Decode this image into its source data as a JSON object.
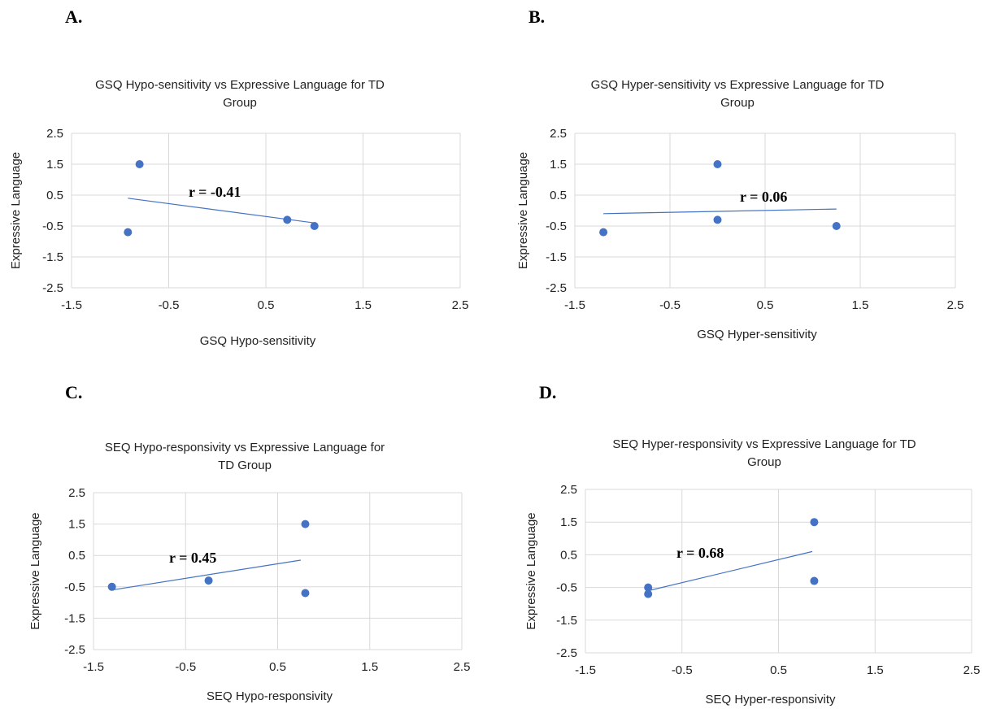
{
  "chart_data": [
    {
      "panel": "A.",
      "type": "scatter",
      "title": "GSQ Hypo-sensitivity vs Expressive Language for TD Group",
      "title_lines": [
        "GSQ Hypo-sensitivity vs Expressive Language for TD",
        "Group"
      ],
      "xlabel": "GSQ Hypo-sensitivity",
      "ylabel": "Expressive Language",
      "xlim": [
        -1.5,
        2.5
      ],
      "ylim": [
        -2.5,
        2.5
      ],
      "xticks": [
        "-1.5",
        "-0.5",
        "0.5",
        "1.5",
        "2.5"
      ],
      "yticks": [
        "2.5",
        "1.5",
        "0.5",
        "-0.5",
        "-1.5",
        "-2.5"
      ],
      "grid": true,
      "points": [
        {
          "x": -0.8,
          "y": 1.5
        },
        {
          "x": -0.92,
          "y": -0.7
        },
        {
          "x": 0.72,
          "y": -0.3
        },
        {
          "x": 1.0,
          "y": -0.5
        }
      ],
      "trendline": {
        "x": [
          -0.92,
          1.0
        ],
        "y": [
          0.4,
          -0.4
        ]
      },
      "annotation": "r = -0.41"
    },
    {
      "panel": "B.",
      "type": "scatter",
      "title": "GSQ Hyper-sensitivity vs Expressive Language for TD Group",
      "title_lines": [
        "GSQ Hyper-sensitivity vs Expressive Language for TD",
        "Group"
      ],
      "xlabel": "GSQ Hyper-sensitivity",
      "ylabel": "Expressive Language",
      "xlim": [
        -1.5,
        2.5
      ],
      "ylim": [
        -2.5,
        2.5
      ],
      "xticks": [
        "-1.5",
        "-0.5",
        "0.5",
        "1.5",
        "2.5"
      ],
      "yticks": [
        "2.5",
        "1.5",
        "0.5",
        "-0.5",
        "-1.5",
        "-2.5"
      ],
      "grid": true,
      "points": [
        {
          "x": -1.2,
          "y": -0.7
        },
        {
          "x": 0.0,
          "y": 1.5
        },
        {
          "x": 0.0,
          "y": -0.3
        },
        {
          "x": 1.25,
          "y": -0.5
        }
      ],
      "trendline": {
        "x": [
          -1.2,
          1.25
        ],
        "y": [
          -0.1,
          0.05
        ]
      },
      "annotation": "r = 0.06"
    },
    {
      "panel": "C.",
      "type": "scatter",
      "title": "SEQ Hypo-responsivity vs Expressive Language for TD Group",
      "title_lines": [
        "SEQ Hypo-responsivity vs Expressive Language for",
        "TD Group"
      ],
      "xlabel": "SEQ Hypo-responsivity",
      "ylabel": "Expressive Language",
      "xlim": [
        -1.5,
        2.5
      ],
      "ylim": [
        -2.5,
        2.5
      ],
      "xticks": [
        "-1.5",
        "-0.5",
        "0.5",
        "1.5",
        "2.5"
      ],
      "yticks": [
        "2.5",
        "1.5",
        "0.5",
        "-0.5",
        "-1.5",
        "-2.5"
      ],
      "grid": true,
      "points": [
        {
          "x": -1.3,
          "y": -0.5
        },
        {
          "x": -0.25,
          "y": -0.3
        },
        {
          "x": 0.8,
          "y": 1.5
        },
        {
          "x": 0.8,
          "y": -0.7
        }
      ],
      "trendline": {
        "x": [
          -1.3,
          0.75
        ],
        "y": [
          -0.6,
          0.35
        ]
      },
      "annotation": "r = 0.45"
    },
    {
      "panel": "D.",
      "type": "scatter",
      "title": "SEQ Hyper-responsivity vs Expressive Language for TD Group",
      "title_lines": [
        "SEQ Hyper-responsivity vs Expressive Language for TD",
        "Group"
      ],
      "xlabel": "SEQ Hyper-responsivity",
      "ylabel": "Expressive Language",
      "xlim": [
        -1.5,
        2.5
      ],
      "ylim": [
        -2.5,
        2.5
      ],
      "xticks": [
        "-1.5",
        "-0.5",
        "0.5",
        "1.5",
        "2.5"
      ],
      "yticks": [
        "2.5",
        "1.5",
        "0.5",
        "-0.5",
        "-1.5",
        "-2.5"
      ],
      "grid": true,
      "points": [
        {
          "x": -0.85,
          "y": -0.5
        },
        {
          "x": -0.85,
          "y": -0.7
        },
        {
          "x": 0.87,
          "y": 1.5
        },
        {
          "x": 0.87,
          "y": -0.3
        }
      ],
      "trendline": {
        "x": [
          -0.85,
          0.85
        ],
        "y": [
          -0.6,
          0.6
        ]
      },
      "annotation": "r = 0.68"
    }
  ],
  "colors": {
    "marker": "#4472C4",
    "trendline": "#4472C4",
    "grid": "#d9d9d9"
  }
}
